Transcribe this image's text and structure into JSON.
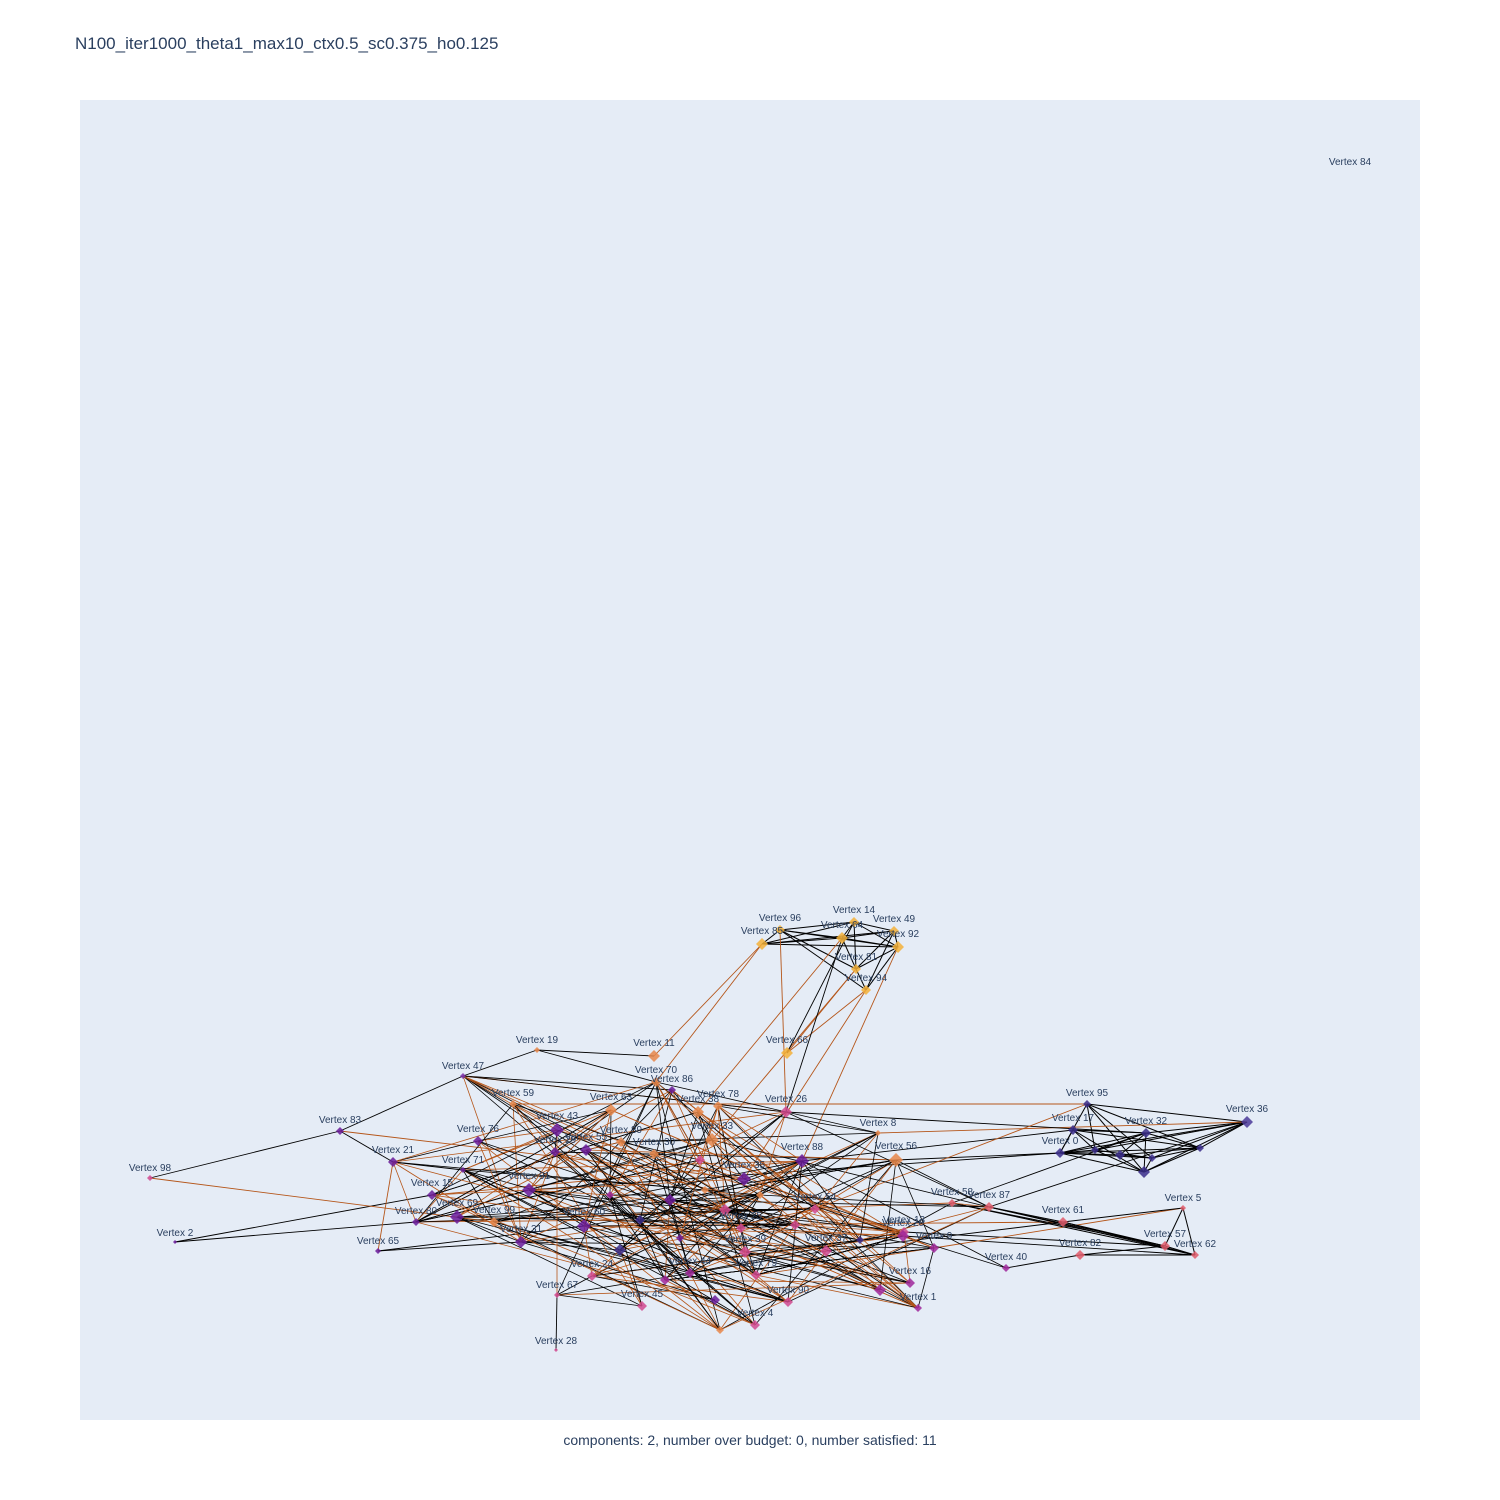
{
  "title": "N100_iter1000_theta1_max10_ctx0.5_sc0.375_ho0.125",
  "caption": "components: 2, number over budget: 0, number satisfied: 11",
  "colors": {
    "plot_bg": "#e5ecf6",
    "edge_black": "#000000",
    "edge_orange": "#b5561a",
    "label": "#2a3f5f"
  },
  "vertices": [
    {
      "id": "84",
      "label": "Vertex 84",
      "color": "#cccccc",
      "size": 0
    },
    {
      "id": "96",
      "label": "Vertex 96",
      "color": "#f4b23a",
      "size": 4
    },
    {
      "id": "14",
      "label": "Vertex 14",
      "color": "#f4b23a",
      "size": 4
    },
    {
      "id": "49",
      "label": "Vertex 49",
      "color": "#f4b23a",
      "size": 4
    },
    {
      "id": "85",
      "label": "Vertex 85",
      "color": "#f4b23a",
      "size": 5
    },
    {
      "id": "64",
      "label": "Vertex 64",
      "color": "#f4b23a",
      "size": 5
    },
    {
      "id": "92",
      "label": "Vertex 92",
      "color": "#f4b23a",
      "size": 5
    },
    {
      "id": "81",
      "label": "Vertex 81",
      "color": "#f4b23a",
      "size": 4
    },
    {
      "id": "94",
      "label": "Vertex 94",
      "color": "#f4b23a",
      "size": 4
    },
    {
      "id": "19",
      "label": "Vertex 19",
      "color": "#e8874a",
      "size": 2
    },
    {
      "id": "11",
      "label": "Vertex 11",
      "color": "#e8874a",
      "size": 5
    },
    {
      "id": "66",
      "label": "Vertex 66",
      "color": "#f4b23a",
      "size": 5
    },
    {
      "id": "70",
      "label": "Vertex 70",
      "color": "#e8874a",
      "size": 4
    },
    {
      "id": "47",
      "label": "Vertex 47",
      "color": "#7b2fa8",
      "size": 2
    },
    {
      "id": "86",
      "label": "Vertex 86",
      "color": "#6a1b9a",
      "size": 3
    },
    {
      "id": "78",
      "label": "Vertex 78",
      "color": "#e8874a",
      "size": 4
    },
    {
      "id": "59",
      "label": "Vertex 59",
      "color": "#e8874a",
      "size": 3
    },
    {
      "id": "63",
      "label": "Vertex 63",
      "color": "#e8874a",
      "size": 5
    },
    {
      "id": "38",
      "label": "Vertex 38",
      "color": "#e8874a",
      "size": 5
    },
    {
      "id": "26",
      "label": "Vertex 26",
      "color": "#d1498f",
      "size": 5
    },
    {
      "id": "95",
      "label": "Vertex 95",
      "color": "#3a2d8a",
      "size": 3
    },
    {
      "id": "83",
      "label": "Vertex 83",
      "color": "#6a1b9a",
      "size": 3
    },
    {
      "id": "43",
      "label": "Vertex 43",
      "color": "#6a1b9a",
      "size": 6
    },
    {
      "id": "8",
      "label": "Vertex 8",
      "color": "#e8874a",
      "size": 2
    },
    {
      "id": "17",
      "label": "Vertex 17",
      "color": "#3a2d8a",
      "size": 4
    },
    {
      "id": "32",
      "label": "Vertex 32",
      "color": "#3a2d8a",
      "size": 4
    },
    {
      "id": "36",
      "label": "Vertex 36",
      "color": "#4b3a99",
      "size": 5
    },
    {
      "id": "76",
      "label": "Vertex 76",
      "color": "#6a1b9a",
      "size": 4
    },
    {
      "id": "89",
      "label": "Vertex 89",
      "color": "#e8874a",
      "size": 4
    },
    {
      "id": "33",
      "label": "Vertex 33",
      "color": "#e8874a",
      "size": 6
    },
    {
      "id": "55",
      "label": "Vertex 55",
      "color": "#6a1b9a",
      "size": 5
    },
    {
      "id": "29",
      "label": "Vertex 29",
      "color": "#6a1b9a",
      "size": 4
    },
    {
      "id": "30",
      "label": "Vertex 30",
      "color": "#e8874a",
      "size": 4
    },
    {
      "id": "88",
      "label": "Vertex 88",
      "color": "#6a1b9a",
      "size": 6
    },
    {
      "id": "56",
      "label": "Vertex 56",
      "color": "#e8874a",
      "size": 6
    },
    {
      "id": "0",
      "label": "Vertex 0",
      "color": "#3a2d8a",
      "size": 4
    },
    {
      "id": "21",
      "label": "Vertex 21",
      "color": "#6a1b9a",
      "size": 4
    },
    {
      "id": "71",
      "label": "Vertex 71",
      "color": "#6a1b9a",
      "size": 2
    },
    {
      "id": "35",
      "label": "Vertex 35",
      "color": "#6a1b9a",
      "size": 6
    },
    {
      "id": "98",
      "label": "Vertex 98",
      "color": "#d1498f",
      "size": 2
    },
    {
      "id": "15",
      "label": "Vertex 15",
      "color": "#6a1b9a",
      "size": 4
    },
    {
      "id": "91",
      "label": "Vertex 91",
      "color": "#6a1b9a",
      "size": 6
    },
    {
      "id": "54",
      "label": "Vertex 54",
      "color": "#d1498f",
      "size": 4
    },
    {
      "id": "58",
      "label": "Vertex 58",
      "color": "#e05a6a",
      "size": 3
    },
    {
      "id": "87",
      "label": "Vertex 87",
      "color": "#e05a6a",
      "size": 4
    },
    {
      "id": "5",
      "label": "Vertex 5",
      "color": "#e05a6a",
      "size": 2
    },
    {
      "id": "69",
      "label": "Vertex 69",
      "color": "#6a1b9a",
      "size": 6
    },
    {
      "id": "80",
      "label": "Vertex 80",
      "color": "#6a1b9a",
      "size": 3
    },
    {
      "id": "99",
      "label": "Vertex 99",
      "color": "#e8874a",
      "size": 4
    },
    {
      "id": "60",
      "label": "Vertex 60",
      "color": "#6a1b9a",
      "size": 6
    },
    {
      "id": "25",
      "label": "Vertex 25",
      "color": "#d1498f",
      "size": 4
    },
    {
      "id": "61",
      "label": "Vertex 61",
      "color": "#e05a6a",
      "size": 4
    },
    {
      "id": "13",
      "label": "Vertex 13",
      "color": "#d1498f",
      "size": 4
    },
    {
      "id": "20",
      "label": "Vertex 20",
      "color": "#a0289b",
      "size": 5
    },
    {
      "id": "2",
      "label": "Vertex 2",
      "color": "#6a1b9a",
      "size": 1
    },
    {
      "id": "31",
      "label": "Vertex 31",
      "color": "#6a1b9a",
      "size": 5
    },
    {
      "id": "39",
      "label": "Vertex 39",
      "color": "#d1498f",
      "size": 5
    },
    {
      "id": "57",
      "label": "Vertex 57",
      "color": "#e05a6a",
      "size": 4
    },
    {
      "id": "37",
      "label": "Vertex 37",
      "color": "#d1498f",
      "size": 5
    },
    {
      "id": "9",
      "label": "Vertex 9",
      "color": "#a0289b",
      "size": 4
    },
    {
      "id": "62",
      "label": "Vertex 62",
      "color": "#e05a6a",
      "size": 3
    },
    {
      "id": "65",
      "label": "Vertex 65",
      "color": "#6a1b9a",
      "size": 2
    },
    {
      "id": "40",
      "label": "Vertex 40",
      "color": "#a0289b",
      "size": 3
    },
    {
      "id": "82",
      "label": "Vertex 82",
      "color": "#e05a6a",
      "size": 4
    },
    {
      "id": "24",
      "label": "Vertex 24",
      "color": "#d1498f",
      "size": 4
    },
    {
      "id": "44",
      "label": "Vertex 44",
      "color": "#a0289b",
      "size": 4
    },
    {
      "id": "79",
      "label": "Vertex 79",
      "color": "#d1498f",
      "size": 4
    },
    {
      "id": "16",
      "label": "Vertex 16",
      "color": "#a0289b",
      "size": 4
    },
    {
      "id": "67",
      "label": "Vertex 67",
      "color": "#d1498f",
      "size": 2
    },
    {
      "id": "45",
      "label": "Vertex 45",
      "color": "#d1498f",
      "size": 4
    },
    {
      "id": "90",
      "label": "Vertex 90",
      "color": "#d1498f",
      "size": 4
    },
    {
      "id": "1",
      "label": "Vertex 1",
      "color": "#a0289b",
      "size": 3
    },
    {
      "id": "4",
      "label": "Vertex 4",
      "color": "#d1498f",
      "size": 4
    },
    {
      "id": "28",
      "label": "Vertex 28",
      "color": "#d1498f",
      "size": 1
    }
  ]
}
